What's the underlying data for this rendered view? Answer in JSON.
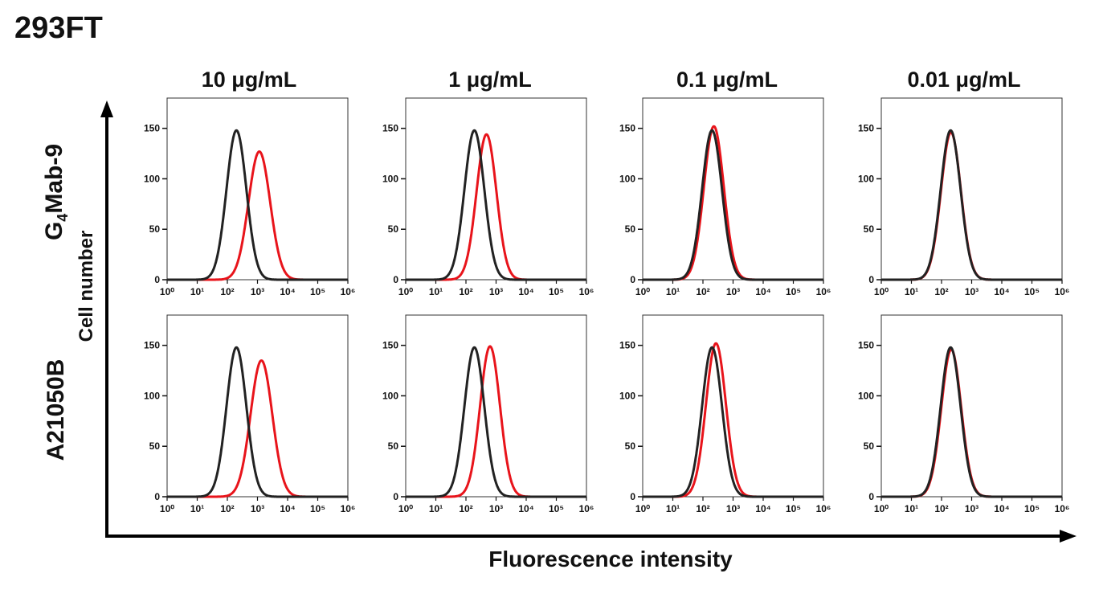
{
  "figure_title": "293FT",
  "column_headers": [
    "10 μg/mL",
    "1 μg/mL",
    "0.1 μg/mL",
    "0.01 μg/mL"
  ],
  "row_labels": [
    {
      "main": "G",
      "sub": "4",
      "rest": "Mab-9"
    },
    {
      "main": "A21050B",
      "sub": "",
      "rest": ""
    }
  ],
  "axis_titles": {
    "y": "Cell number",
    "x": "Fluorescence intensity"
  },
  "colors": {
    "treated": "#e8141b",
    "control": "#222222"
  },
  "chart_data": {
    "type": "line",
    "panel_grid": {
      "rows": 2,
      "cols": 4
    },
    "x_scale": "log",
    "xlim": [
      1,
      1000000
    ],
    "x_tick_labels": [
      "10⁰",
      "10¹",
      "10²",
      "10³",
      "10⁴",
      "10⁵",
      "10⁶"
    ],
    "ylim": [
      0,
      180
    ],
    "y_tick_labels": [
      "0",
      "50",
      "100",
      "150"
    ],
    "y_ticks": [
      0,
      50,
      100,
      150
    ],
    "panels": [
      {
        "row": 0,
        "col": 0,
        "series": [
          {
            "role": "control",
            "peak_x": 200,
            "peak_y": 148,
            "width_decades": 0.33
          },
          {
            "role": "treated",
            "peak_x": 1150,
            "peak_y": 127,
            "width_decades": 0.36
          }
        ]
      },
      {
        "row": 0,
        "col": 1,
        "series": [
          {
            "role": "control",
            "peak_x": 190,
            "peak_y": 148,
            "width_decades": 0.33
          },
          {
            "role": "treated",
            "peak_x": 480,
            "peak_y": 144,
            "width_decades": 0.33
          }
        ]
      },
      {
        "row": 0,
        "col": 2,
        "series": [
          {
            "role": "control",
            "peak_x": 200,
            "peak_y": 148,
            "width_decades": 0.33
          },
          {
            "role": "treated",
            "peak_x": 230,
            "peak_y": 152,
            "width_decades": 0.33
          }
        ]
      },
      {
        "row": 0,
        "col": 3,
        "series": [
          {
            "role": "control",
            "peak_x": 200,
            "peak_y": 148,
            "width_decades": 0.33
          },
          {
            "role": "treated",
            "peak_x": 205,
            "peak_y": 146,
            "width_decades": 0.33
          }
        ]
      },
      {
        "row": 1,
        "col": 0,
        "series": [
          {
            "role": "control",
            "peak_x": 200,
            "peak_y": 148,
            "width_decades": 0.33
          },
          {
            "role": "treated",
            "peak_x": 1350,
            "peak_y": 135,
            "width_decades": 0.36
          }
        ]
      },
      {
        "row": 1,
        "col": 1,
        "series": [
          {
            "role": "control",
            "peak_x": 190,
            "peak_y": 148,
            "width_decades": 0.33
          },
          {
            "role": "treated",
            "peak_x": 630,
            "peak_y": 149,
            "width_decades": 0.33
          }
        ]
      },
      {
        "row": 1,
        "col": 2,
        "series": [
          {
            "role": "control",
            "peak_x": 200,
            "peak_y": 148,
            "width_decades": 0.33
          },
          {
            "role": "treated",
            "peak_x": 270,
            "peak_y": 152,
            "width_decades": 0.33
          }
        ]
      },
      {
        "row": 1,
        "col": 3,
        "series": [
          {
            "role": "control",
            "peak_x": 200,
            "peak_y": 148,
            "width_decades": 0.33
          },
          {
            "role": "treated",
            "peak_x": 210,
            "peak_y": 146,
            "width_decades": 0.33
          }
        ]
      }
    ]
  }
}
